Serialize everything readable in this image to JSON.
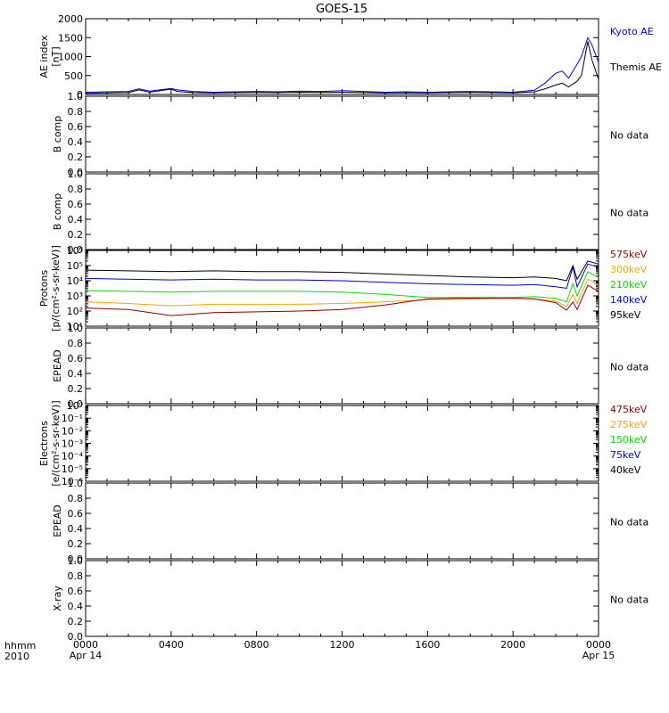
{
  "chart_data": {
    "type": "line",
    "title": "GOES-15",
    "x_axis": {
      "range_hours": [
        0,
        24
      ],
      "ticks": [
        {
          "hour": 0,
          "label": "0000"
        },
        {
          "hour": 4,
          "label": "0400"
        },
        {
          "hour": 8,
          "label": "0800"
        },
        {
          "hour": 12,
          "label": "1200"
        },
        {
          "hour": 16,
          "label": "1600"
        },
        {
          "hour": 20,
          "label": "2000"
        },
        {
          "hour": 24,
          "label": "0000"
        }
      ],
      "date_labels": [
        {
          "hour": 0,
          "label": "Apr 14"
        },
        {
          "hour": 24,
          "label": "Apr 15"
        }
      ],
      "corner_label_top": "hhmm",
      "corner_label_bottom": "2010"
    },
    "panels": [
      {
        "id": "ae",
        "ylabel_lines": [
          "AE index",
          "[nT]"
        ],
        "scale": "linear",
        "ylim": [
          0,
          2000
        ],
        "yticks": [
          "0",
          "500",
          "1000",
          "1500",
          "2000"
        ],
        "ytick_values": [
          0,
          500,
          1000,
          1500,
          2000
        ],
        "legend": [
          {
            "label": "Kyoto AE",
            "color": "#0000dd"
          },
          {
            "label": "Themis AE",
            "color": "#000000"
          }
        ],
        "series": [
          {
            "name": "Kyoto AE",
            "color": "#0000dd",
            "points": [
              [
                0,
                60
              ],
              [
                1,
                70
              ],
              [
                2,
                80
              ],
              [
                2.5,
                150
              ],
              [
                3,
                90
              ],
              [
                4,
                160
              ],
              [
                4.3,
                120
              ],
              [
                5,
                80
              ],
              [
                6,
                60
              ],
              [
                7,
                70
              ],
              [
                8,
                80
              ],
              [
                9,
                70
              ],
              [
                10,
                90
              ],
              [
                11,
                80
              ],
              [
                12,
                100
              ],
              [
                13,
                80
              ],
              [
                14,
                60
              ],
              [
                15,
                70
              ],
              [
                16,
                60
              ],
              [
                17,
                70
              ],
              [
                18,
                80
              ],
              [
                19,
                70
              ],
              [
                20,
                60
              ],
              [
                21,
                110
              ],
              [
                21.5,
                300
              ],
              [
                22,
                560
              ],
              [
                22.3,
                620
              ],
              [
                22.6,
                430
              ],
              [
                23,
                800
              ],
              [
                23.2,
                1000
              ],
              [
                23.5,
                1500
              ],
              [
                23.7,
                1300
              ],
              [
                24,
                850
              ]
            ]
          },
          {
            "name": "Themis AE",
            "color": "#000000",
            "points": [
              [
                0,
                30
              ],
              [
                1,
                40
              ],
              [
                2,
                50
              ],
              [
                2.5,
                120
              ],
              [
                3,
                60
              ],
              [
                4,
                140
              ],
              [
                4.3,
                80
              ],
              [
                5,
                50
              ],
              [
                6,
                40
              ],
              [
                7,
                50
              ],
              [
                8,
                55
              ],
              [
                9,
                50
              ],
              [
                10,
                60
              ],
              [
                11,
                55
              ],
              [
                12,
                60
              ],
              [
                13,
                50
              ],
              [
                14,
                40
              ],
              [
                15,
                45
              ],
              [
                16,
                40
              ],
              [
                17,
                50
              ],
              [
                18,
                55
              ],
              [
                19,
                50
              ],
              [
                20,
                40
              ],
              [
                21,
                70
              ],
              [
                21.5,
                150
              ],
              [
                22,
                250
              ],
              [
                22.3,
                300
              ],
              [
                22.6,
                200
              ],
              [
                23,
                350
              ],
              [
                23.2,
                500
              ],
              [
                23.5,
                1400
              ],
              [
                23.7,
                900
              ],
              [
                24,
                400
              ]
            ]
          }
        ]
      },
      {
        "id": "bcomp1",
        "ylabel_lines": [
          "B comp"
        ],
        "scale": "linear",
        "ylim": [
          0,
          1
        ],
        "yticks": [
          "0.0",
          "0.2",
          "0.4",
          "0.6",
          "0.8",
          "1.0"
        ],
        "ytick_values": [
          0,
          0.2,
          0.4,
          0.6,
          0.8,
          1.0
        ],
        "note": "No data",
        "series": []
      },
      {
        "id": "bcomp2",
        "ylabel_lines": [
          "B comp"
        ],
        "scale": "linear",
        "ylim": [
          0,
          1
        ],
        "yticks": [
          "0.0",
          "0.2",
          "0.4",
          "0.6",
          "0.8",
          "1.0"
        ],
        "ytick_values": [
          0,
          0.2,
          0.4,
          0.6,
          0.8,
          1.0
        ],
        "note": "No data",
        "series": []
      },
      {
        "id": "protons",
        "ylabel_lines": [
          "Protons",
          "[p/(cm²-s-sr-keV)]"
        ],
        "scale": "log",
        "ylim_exp": [
          1,
          6
        ],
        "yticks": [
          "10¹",
          "10²",
          "10³",
          "10⁴",
          "10⁵",
          "10⁶"
        ],
        "ytick_values": [
          1,
          2,
          3,
          4,
          5,
          6
        ],
        "legend": [
          {
            "label": "575keV",
            "color": "#8b0000"
          },
          {
            "label": "300keV",
            "color": "#ffa500"
          },
          {
            "label": "210keV",
            "color": "#00dd00"
          },
          {
            "label": "140keV",
            "color": "#0000dd"
          },
          {
            "label": "95keV",
            "color": "#000000"
          }
        ],
        "series": [
          {
            "name": "95keV",
            "color": "#000000",
            "points": [
              [
                0,
                4.7
              ],
              [
                2,
                4.65
              ],
              [
                4,
                4.6
              ],
              [
                6,
                4.65
              ],
              [
                8,
                4.6
              ],
              [
                10,
                4.6
              ],
              [
                12,
                4.55
              ],
              [
                14,
                4.45
              ],
              [
                16,
                4.35
              ],
              [
                18,
                4.25
              ],
              [
                20,
                4.2
              ],
              [
                21,
                4.25
              ],
              [
                22,
                4.15
              ],
              [
                22.5,
                4.0
              ],
              [
                22.8,
                5.0
              ],
              [
                23,
                4.1
              ],
              [
                23.5,
                5.3
              ],
              [
                24,
                5.1
              ]
            ]
          },
          {
            "name": "140keV",
            "color": "#0000dd",
            "points": [
              [
                0,
                4.15
              ],
              [
                2,
                4.1
              ],
              [
                4,
                4.05
              ],
              [
                6,
                4.1
              ],
              [
                8,
                4.05
              ],
              [
                10,
                4.05
              ],
              [
                12,
                4.0
              ],
              [
                14,
                3.9
              ],
              [
                16,
                3.8
              ],
              [
                18,
                3.75
              ],
              [
                20,
                3.7
              ],
              [
                21,
                3.75
              ],
              [
                22,
                3.6
              ],
              [
                22.5,
                3.5
              ],
              [
                22.8,
                4.9
              ],
              [
                23,
                3.6
              ],
              [
                23.5,
                5.1
              ],
              [
                24,
                4.9
              ]
            ]
          },
          {
            "name": "210keV",
            "color": "#00dd00",
            "points": [
              [
                0,
                3.35
              ],
              [
                2,
                3.3
              ],
              [
                4,
                3.25
              ],
              [
                6,
                3.3
              ],
              [
                8,
                3.3
              ],
              [
                10,
                3.3
              ],
              [
                12,
                3.25
              ],
              [
                14,
                3.1
              ],
              [
                16,
                2.9
              ],
              [
                18,
                2.9
              ],
              [
                20,
                2.9
              ],
              [
                21,
                2.95
              ],
              [
                22,
                2.85
              ],
              [
                22.5,
                2.6
              ],
              [
                22.8,
                3.8
              ],
              [
                23,
                3.0
              ],
              [
                23.5,
                4.6
              ],
              [
                24,
                4.2
              ]
            ]
          },
          {
            "name": "300keV",
            "color": "#ffa500",
            "points": [
              [
                0,
                2.6
              ],
              [
                2,
                2.5
              ],
              [
                4,
                2.35
              ],
              [
                6,
                2.45
              ],
              [
                8,
                2.45
              ],
              [
                10,
                2.45
              ],
              [
                12,
                2.5
              ],
              [
                14,
                2.6
              ],
              [
                16,
                2.75
              ],
              [
                18,
                2.8
              ],
              [
                20,
                2.85
              ],
              [
                21,
                2.8
              ],
              [
                22,
                2.65
              ],
              [
                22.5,
                2.3
              ],
              [
                22.8,
                3.1
              ],
              [
                23,
                2.5
              ],
              [
                23.5,
                4.1
              ],
              [
                24,
                3.7
              ]
            ]
          },
          {
            "name": "575keV",
            "color": "#8b0000",
            "points": [
              [
                0,
                2.2
              ],
              [
                2,
                2.1
              ],
              [
                4,
                1.7
              ],
              [
                6,
                1.9
              ],
              [
                8,
                1.95
              ],
              [
                10,
                2.0
              ],
              [
                12,
                2.1
              ],
              [
                14,
                2.4
              ],
              [
                16,
                2.8
              ],
              [
                18,
                2.85
              ],
              [
                20,
                2.85
              ],
              [
                21,
                2.8
              ],
              [
                22,
                2.55
              ],
              [
                22.5,
                2.05
              ],
              [
                22.8,
                2.6
              ],
              [
                23,
                2.1
              ],
              [
                23.5,
                3.7
              ],
              [
                24,
                3.3
              ]
            ]
          }
        ]
      },
      {
        "id": "epead1",
        "ylabel_lines": [
          "EPEAD"
        ],
        "scale": "linear",
        "ylim": [
          0,
          1
        ],
        "yticks": [
          "0.0",
          "0.2",
          "0.4",
          "0.6",
          "0.8",
          "1.0"
        ],
        "ytick_values": [
          0,
          0.2,
          0.4,
          0.6,
          0.8,
          1.0
        ],
        "note": "No data",
        "series": []
      },
      {
        "id": "electrons",
        "ylabel_lines": [
          "Electrons",
          "[e/(cm²-s-sr-keV)]"
        ],
        "scale": "log",
        "ylim_exp": [
          -6,
          0
        ],
        "yticks": [
          "10⁻⁶",
          "10⁻⁵",
          "10⁻⁴",
          "10⁻³",
          "10⁻²",
          "10⁻¹",
          "10⁰"
        ],
        "ytick_values": [
          -6,
          -5,
          -4,
          -3,
          -2,
          -1,
          0
        ],
        "legend": [
          {
            "label": "475keV",
            "color": "#8b0000"
          },
          {
            "label": "275keV",
            "color": "#ffa500"
          },
          {
            "label": "150keV",
            "color": "#00dd00"
          },
          {
            "label": "75keV",
            "color": "#0000dd"
          },
          {
            "label": "40keV",
            "color": "#000000"
          }
        ],
        "series": []
      },
      {
        "id": "epead2",
        "ylabel_lines": [
          "EPEAD"
        ],
        "scale": "linear",
        "ylim": [
          0,
          1
        ],
        "yticks": [
          "0.0",
          "0.2",
          "0.4",
          "0.6",
          "0.8",
          "1.0"
        ],
        "ytick_values": [
          0,
          0.2,
          0.4,
          0.6,
          0.8,
          1.0
        ],
        "note": "No data",
        "series": []
      },
      {
        "id": "xray",
        "ylabel_lines": [
          "X-ray"
        ],
        "scale": "linear",
        "ylim": [
          0,
          1
        ],
        "yticks": [
          "0.0",
          "0.2",
          "0.4",
          "0.6",
          "0.8",
          "1.0"
        ],
        "ytick_values": [
          0,
          0.2,
          0.4,
          0.6,
          0.8,
          1.0
        ],
        "note": "No data",
        "series": []
      }
    ]
  }
}
